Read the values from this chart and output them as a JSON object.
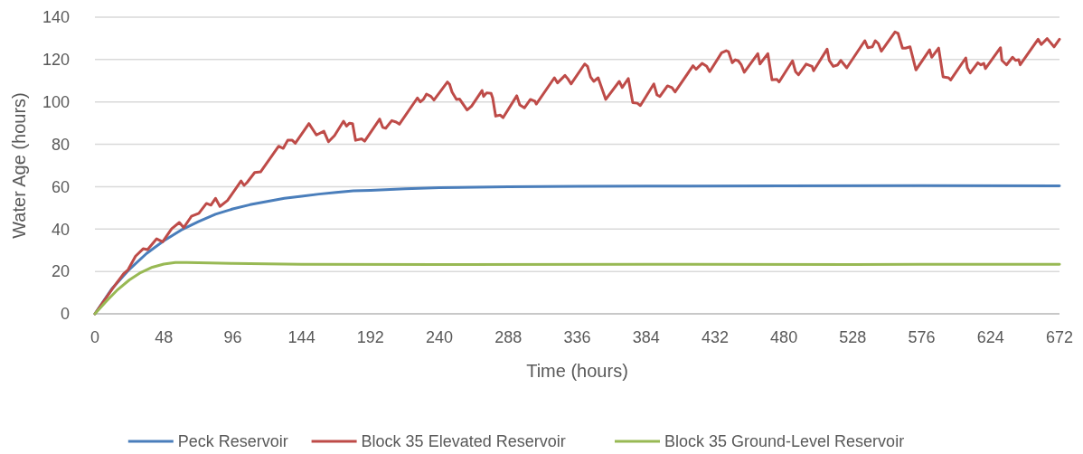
{
  "chart_data": {
    "type": "line",
    "xlabel": "Time (hours)",
    "ylabel": "Water Age (hours)",
    "xlim": [
      0,
      672
    ],
    "ylim": [
      0,
      140
    ],
    "xticks": [
      0,
      48,
      96,
      144,
      192,
      240,
      288,
      336,
      384,
      432,
      480,
      528,
      576,
      624,
      672
    ],
    "yticks": [
      0,
      20,
      40,
      60,
      80,
      100,
      120,
      140
    ],
    "grid": "y",
    "legend": "bottom",
    "marker": "none",
    "line_style": "solid",
    "series": [
      {
        "name": "Peck Reservoir",
        "color": "#4a7ebb",
        "x": [
          0,
          12,
          24,
          36,
          48,
          60,
          72,
          84,
          96,
          108,
          120,
          132,
          144,
          156,
          168,
          180,
          192,
          216,
          240,
          288,
          336,
          384,
          480,
          576,
          672
        ],
        "values": [
          0,
          12,
          21,
          28.5,
          34.5,
          39.5,
          43.5,
          47,
          49.5,
          51.5,
          53,
          54.5,
          55.5,
          56.5,
          57.3,
          58,
          58.3,
          59,
          59.5,
          60,
          60.2,
          60.3,
          60.4,
          60.5,
          60.4
        ]
      },
      {
        "name": "Block 35 Elevated Reservoir",
        "color": "#be4b48",
        "x": [
          0,
          12.6,
          20,
          23.1,
          28.3,
          33.6,
          36.7,
          43,
          47.2,
          53.5,
          58.8,
          61.9,
          67.2,
          72.4,
          77.7,
          80.8,
          84,
          87.1,
          92.4,
          101.8,
          103.9,
          106,
          111.3,
          115.4,
          128,
          131.2,
          134.3,
          137.5,
          139.6,
          149.1,
          154.3,
          159.5,
          162.7,
          166.9,
          173.2,
          175.3,
          177.4,
          179.5,
          181.6,
          185.8,
          187.9,
          198.4,
          200.5,
          202.6,
          206.8,
          209.9,
          212.1,
          224.7,
          226.7,
          228.8,
          231,
          234.1,
          236.2,
          245.6,
          247.1,
          248.8,
          251.9,
          254,
          259.3,
          262.4,
          269.7,
          270.8,
          272.9,
          276,
          277.1,
          279.2,
          282.3,
          284.4,
          293.9,
          296,
          299.2,
          303.4,
          306.5,
          307.5,
          320.1,
          322.3,
          327.5,
          329.6,
          331.7,
          341.2,
          343.2,
          345.3,
          347.5,
          350.6,
          355.9,
          365.3,
          367.4,
          371.6,
          374.7,
          377.9,
          380,
          389.4,
          391.6,
          393.6,
          398.9,
          402,
          404.2,
          416.7,
          418.8,
          423,
          426.2,
          428.3,
          436.6,
          439.8,
          441.5,
          444,
          446.1,
          448.2,
          450.3,
          452.4,
          461.8,
          463.3,
          468.8,
          471.7,
          475.1,
          476.6,
          486,
          488.1,
          490.2,
          495.5,
          499.6,
          500.7,
          510.1,
          511.6,
          514.4,
          517.5,
          519.6,
          523.8,
          536.4,
          538.5,
          541.6,
          543.7,
          545.8,
          547.9,
          557.4,
          559.5,
          562.6,
          564.7,
          567.9,
          572,
          581.5,
          583,
          587.8,
          590.9,
          594.7,
          596.2,
          606.7,
          607.8,
          609.8,
          615.1,
          617.2,
          619.3,
          620.4,
          630.9,
          631.9,
          635.1,
          639.3,
          641.4,
          643.6,
          644.6,
          657.1,
          659.3,
          663.4,
          665.5,
          668.2,
          672
        ],
        "values": [
          0,
          12.2,
          18.9,
          20.8,
          27.2,
          30.7,
          30.3,
          35.4,
          34,
          40.2,
          43.1,
          40.7,
          46,
          47.4,
          52.1,
          51.3,
          54.5,
          50.7,
          53.5,
          62.7,
          60.6,
          62,
          66.7,
          67,
          79.1,
          78.1,
          81.9,
          81.9,
          80.5,
          89.8,
          84.4,
          86.2,
          81.2,
          84.1,
          90.9,
          88.6,
          90,
          89.8,
          81.9,
          82.6,
          81.5,
          91.9,
          88,
          87.6,
          91.2,
          90.5,
          89.5,
          101.9,
          100,
          101.2,
          103.7,
          102.6,
          100.9,
          109.4,
          108.3,
          104.7,
          101.2,
          101.4,
          96.2,
          98,
          105.4,
          102.6,
          104.3,
          104,
          101.9,
          93.3,
          93.8,
          92.6,
          102.9,
          98.6,
          97.2,
          101.2,
          100.4,
          99,
          111.4,
          109,
          112.5,
          110.8,
          108.5,
          117.9,
          116.8,
          111.8,
          109.7,
          111.4,
          101.2,
          109.7,
          106.8,
          111.1,
          99.7,
          99.4,
          98.3,
          108.5,
          103.3,
          102.6,
          107.6,
          106.8,
          104.7,
          117.1,
          115.4,
          118.2,
          116.8,
          114.3,
          123.2,
          124.2,
          123.6,
          118.5,
          119.9,
          119.4,
          117.5,
          114,
          122.8,
          117.9,
          122.8,
          110.4,
          110.7,
          109.4,
          119.4,
          114.3,
          112.8,
          117.9,
          116.8,
          114.7,
          124.9,
          119.6,
          116.8,
          117.5,
          119.6,
          116.1,
          128.9,
          125.6,
          126,
          128.9,
          127.5,
          123.9,
          133,
          132.4,
          125.4,
          125.4,
          126,
          115.1,
          124.6,
          121.1,
          125.4,
          111.8,
          111.4,
          110.4,
          120.8,
          116.1,
          113.7,
          118.5,
          117.5,
          118.2,
          115.7,
          125.6,
          119.6,
          117.5,
          121.1,
          119.6,
          119.9,
          117.5,
          129.6,
          127.1,
          129.9,
          128.2,
          126,
          129.6
        ]
      },
      {
        "name": "Block 35 Ground-Level Reservoir",
        "color": "#98b954",
        "x": [
          0,
          8,
          16,
          24,
          32,
          40,
          48,
          56,
          64,
          80,
          96,
          144,
          240,
          384,
          528,
          672
        ],
        "values": [
          0,
          6,
          11.5,
          16,
          19.5,
          22,
          23.5,
          24.2,
          24.2,
          24,
          23.8,
          23.4,
          23.3,
          23.4,
          23.3,
          23.4
        ]
      }
    ]
  }
}
